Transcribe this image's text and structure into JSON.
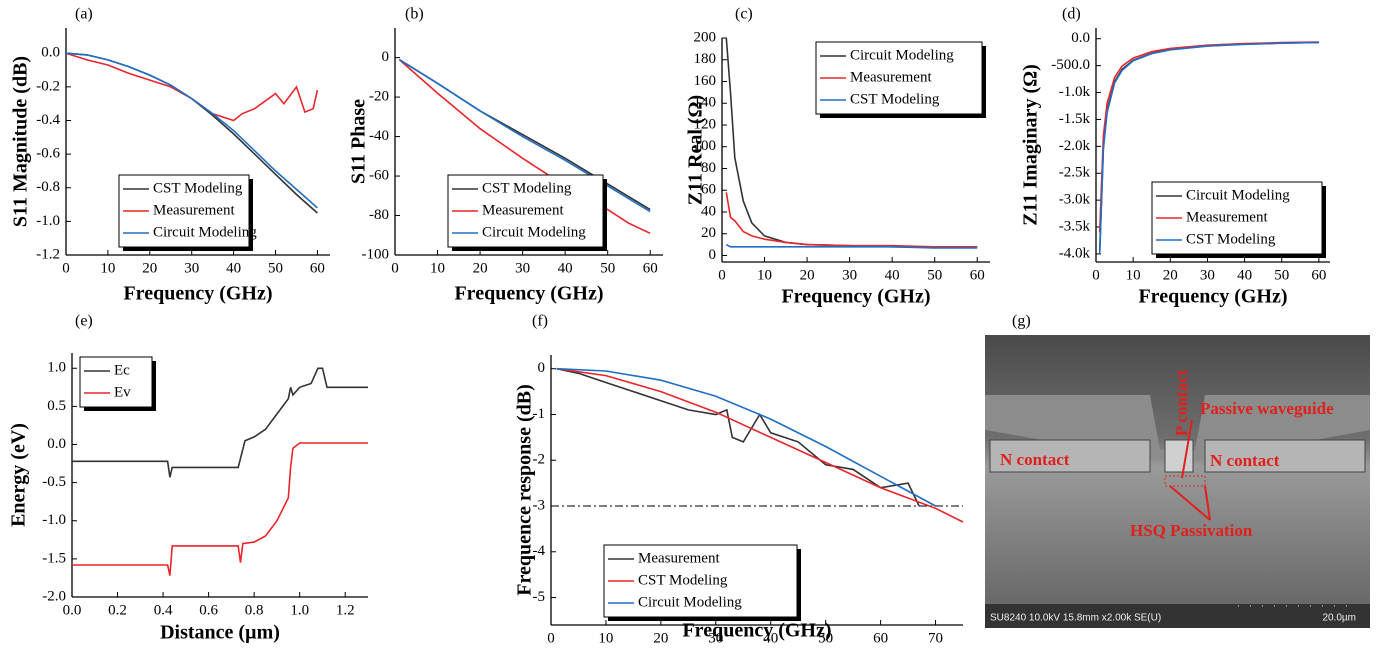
{
  "chart_data": [
    {
      "type": "line",
      "panel": "(a)",
      "xlabel": "Frequency (GHz)",
      "ylabel": "S11 Magnitude (dB)",
      "xlim": [
        0,
        63
      ],
      "ylim": [
        -1.2,
        0.15
      ],
      "xticks": [
        0,
        10,
        20,
        30,
        40,
        50,
        60
      ],
      "yticks": [
        {
          "value": 0,
          "label": "0.0"
        },
        -0.2,
        -0.4,
        -0.6,
        -0.8,
        {
          "value": -1,
          "label": "-1.0"
        },
        -1.2
      ],
      "legend": "lower left",
      "series": [
        {
          "name": "CST Modeling",
          "color": "#333333",
          "x": [
            0,
            5,
            10,
            15,
            20,
            25,
            30,
            35,
            40,
            45,
            50,
            55,
            60
          ],
          "values": [
            0,
            -0.01,
            -0.04,
            -0.08,
            -0.13,
            -0.19,
            -0.27,
            -0.37,
            -0.48,
            -0.6,
            -0.72,
            -0.84,
            -0.95
          ]
        },
        {
          "name": "Measurement",
          "color": "#e8262b",
          "x": [
            0,
            5,
            10,
            15,
            20,
            25,
            30,
            35,
            40,
            42,
            45,
            50,
            52,
            55,
            57,
            59,
            60
          ],
          "values": [
            0,
            -0.04,
            -0.07,
            -0.12,
            -0.16,
            -0.2,
            -0.27,
            -0.36,
            -0.4,
            -0.36,
            -0.33,
            -0.24,
            -0.3,
            -0.2,
            -0.35,
            -0.33,
            -0.22
          ]
        },
        {
          "name": "Circuit Modeling",
          "color": "#1f6fc5",
          "x": [
            0,
            5,
            10,
            15,
            20,
            25,
            30,
            35,
            40,
            45,
            50,
            55,
            60
          ],
          "values": [
            0,
            -0.01,
            -0.04,
            -0.08,
            -0.13,
            -0.19,
            -0.27,
            -0.36,
            -0.46,
            -0.58,
            -0.7,
            -0.81,
            -0.92
          ]
        }
      ]
    },
    {
      "type": "line",
      "panel": "(b)",
      "xlabel": "Frequency (GHz)",
      "ylabel": "S11 Phase",
      "xlim": [
        0,
        63
      ],
      "ylim": [
        -100,
        15
      ],
      "xticks": [
        0,
        10,
        20,
        30,
        40,
        50,
        60
      ],
      "yticks": [
        0,
        -20,
        -40,
        -60,
        -80,
        -100
      ],
      "legend": "lower left",
      "series": [
        {
          "name": "CST Modeling",
          "color": "#333333",
          "x": [
            1,
            10,
            20,
            30,
            40,
            50,
            60
          ],
          "values": [
            -1,
            -13,
            -27,
            -39,
            -51,
            -64,
            -77
          ]
        },
        {
          "name": "Measurement",
          "color": "#e8262b",
          "x": [
            1,
            10,
            20,
            30,
            40,
            50,
            55,
            60
          ],
          "values": [
            -1,
            -18,
            -36,
            -51,
            -65,
            -77,
            -84,
            -89
          ]
        },
        {
          "name": "Circuit Modeling",
          "color": "#1f6fc5",
          "x": [
            1,
            10,
            20,
            30,
            40,
            50,
            60
          ],
          "values": [
            -1,
            -13,
            -27,
            -40,
            -52,
            -65,
            -78
          ]
        }
      ]
    },
    {
      "type": "line",
      "panel": "(c)",
      "xlabel": "Frequency (GHz)",
      "ylabel": "Z11 Real (Ω)",
      "xlim": [
        0,
        63
      ],
      "ylim": [
        -6,
        200
      ],
      "xticks": [
        0,
        10,
        20,
        30,
        40,
        50,
        60
      ],
      "yticks": [
        0,
        20,
        40,
        60,
        80,
        100,
        120,
        140,
        160,
        180,
        200
      ],
      "legend": "upper right",
      "series": [
        {
          "name": "Circuit Modeling",
          "color": "#333333",
          "x": [
            1,
            2,
            3,
            5,
            7,
            10,
            15,
            20,
            30,
            40,
            50,
            60
          ],
          "values": [
            200,
            150,
            90,
            50,
            30,
            18,
            12,
            10,
            9,
            8,
            8,
            8
          ]
        },
        {
          "name": "Measurement",
          "color": "#e8262b",
          "x": [
            1,
            2,
            3,
            5,
            7,
            10,
            15,
            20,
            30,
            40,
            50,
            60
          ],
          "values": [
            58,
            35,
            32,
            22,
            18,
            15,
            12,
            10,
            9,
            9,
            8,
            8
          ]
        },
        {
          "name": "CST Modeling",
          "color": "#1f6fc5",
          "x": [
            1,
            2,
            3,
            5,
            7,
            10,
            15,
            20,
            30,
            40,
            50,
            60
          ],
          "values": [
            10,
            8,
            8,
            8,
            8,
            8,
            8,
            8,
            8,
            8,
            7,
            7
          ]
        }
      ]
    },
    {
      "type": "line",
      "panel": "(d)",
      "xlabel": "Frequency (GHz)",
      "ylabel": "Z11 Imaginary (Ω)",
      "xlim": [
        0,
        63
      ],
      "ylim": [
        -4150,
        200
      ],
      "xticks": [
        0,
        10,
        20,
        30,
        40,
        50,
        60
      ],
      "yticks": [
        {
          "value": 0,
          "label": "0.0"
        },
        {
          "value": -500,
          "label": "-500.0"
        },
        {
          "value": -1000,
          "label": "-1.0k"
        },
        {
          "value": -1500,
          "label": "-1.5k"
        },
        {
          "value": -2000,
          "label": "-2.0k"
        },
        {
          "value": -2500,
          "label": "-2.5k"
        },
        {
          "value": -3000,
          "label": "-3.0k"
        },
        {
          "value": -3500,
          "label": "-3.5k"
        },
        {
          "value": -4000,
          "label": "-4.0k"
        }
      ],
      "legend": "lower right",
      "series": [
        {
          "name": "Circuit Modeling",
          "color": "#333333",
          "x": [
            1,
            2,
            3,
            5,
            7,
            10,
            15,
            20,
            30,
            40,
            50,
            60
          ],
          "values": [
            -3950,
            -2000,
            -1330,
            -800,
            -570,
            -400,
            -270,
            -200,
            -135,
            -100,
            -80,
            -67
          ]
        },
        {
          "name": "Measurement",
          "color": "#e8262b",
          "x": [
            1,
            2,
            3,
            5,
            7,
            10,
            15,
            20,
            30,
            40,
            50,
            60
          ],
          "values": [
            -3600,
            -1800,
            -1200,
            -720,
            -510,
            -360,
            -240,
            -180,
            -120,
            -90,
            -72,
            -60
          ]
        },
        {
          "name": "CST Modeling",
          "color": "#1f6fc5",
          "x": [
            1,
            2,
            3,
            5,
            7,
            10,
            15,
            20,
            30,
            40,
            50,
            60
          ],
          "values": [
            -4000,
            -2050,
            -1370,
            -820,
            -590,
            -410,
            -275,
            -205,
            -137,
            -103,
            -82,
            -68
          ]
        }
      ]
    },
    {
      "type": "line",
      "panel": "(e)",
      "xlabel": "Distance (µm)",
      "ylabel": "Energy (eV)",
      "xlim": [
        0,
        1.3
      ],
      "ylim": [
        -2,
        1.2
      ],
      "xticks": [
        {
          "value": 0,
          "label": "0.0"
        },
        0.2,
        0.4,
        0.6,
        0.8,
        {
          "value": 1,
          "label": "1.0"
        },
        1.2
      ],
      "yticks": [
        {
          "value": 1,
          "label": "1.0"
        },
        0.5,
        {
          "value": 0,
          "label": "0.0"
        },
        -0.5,
        {
          "value": -1,
          "label": "-1.0"
        },
        -1.5,
        {
          "value": -2,
          "label": "-2.0"
        }
      ],
      "legend": "upper left",
      "series": [
        {
          "name": "Ec",
          "color": "#333333",
          "x": [
            0,
            0.42,
            0.43,
            0.44,
            0.73,
            0.76,
            0.8,
            0.85,
            0.9,
            0.95,
            0.96,
            0.97,
            1.0,
            1.05,
            1.08,
            1.1,
            1.12,
            1.3
          ],
          "values": [
            -0.22,
            -0.22,
            -0.43,
            -0.3,
            -0.3,
            0.05,
            0.1,
            0.2,
            0.4,
            0.6,
            0.75,
            0.65,
            0.75,
            0.8,
            1.0,
            1.0,
            0.75,
            0.75
          ]
        },
        {
          "name": "Ev",
          "color": "#e8262b",
          "x": [
            0,
            0.42,
            0.43,
            0.44,
            0.73,
            0.74,
            0.75,
            0.8,
            0.85,
            0.9,
            0.95,
            0.96,
            0.97,
            1.0,
            1.3
          ],
          "values": [
            -1.58,
            -1.58,
            -1.72,
            -1.33,
            -1.33,
            -1.55,
            -1.3,
            -1.28,
            -1.2,
            -1.0,
            -0.7,
            -0.3,
            -0.05,
            0.02,
            0.02
          ]
        }
      ]
    },
    {
      "type": "line",
      "panel": "(f)",
      "xlabel": "Frequency (GHz)",
      "ylabel": "Frequence response (dB)",
      "xlim": [
        0,
        75
      ],
      "ylim": [
        -5.6,
        0.3
      ],
      "xticks": [
        0,
        10,
        20,
        30,
        40,
        50,
        60,
        70
      ],
      "yticks": [
        0,
        -1,
        -2,
        -3,
        -4,
        -5
      ],
      "legend": "lower left",
      "hline": -3,
      "series": [
        {
          "name": "Measurement",
          "color": "#333333",
          "x": [
            1,
            5,
            10,
            15,
            20,
            25,
            30,
            32,
            33,
            35,
            38,
            40,
            45,
            50,
            55,
            60,
            65,
            67
          ],
          "values": [
            0,
            -0.1,
            -0.3,
            -0.5,
            -0.7,
            -0.9,
            -1.0,
            -0.9,
            -1.5,
            -1.6,
            -1.0,
            -1.4,
            -1.6,
            -2.1,
            -2.2,
            -2.6,
            -2.5,
            -3.0
          ]
        },
        {
          "name": "CST Modeling",
          "color": "#e8262b",
          "x": [
            1,
            10,
            20,
            30,
            40,
            50,
            60,
            70,
            75
          ],
          "values": [
            0,
            -0.15,
            -0.5,
            -0.95,
            -1.5,
            -2.05,
            -2.6,
            -3.05,
            -3.35
          ]
        },
        {
          "name": "Circuit Modeling",
          "color": "#1f6fc5",
          "x": [
            1,
            10,
            20,
            30,
            40,
            50,
            60,
            70
          ],
          "values": [
            0,
            -0.05,
            -0.25,
            -0.6,
            -1.1,
            -1.7,
            -2.35,
            -3.0
          ]
        }
      ]
    }
  ],
  "image": {
    "panel": "(g)",
    "annotations": [
      "Passive waveguide",
      "P contact",
      "N contact",
      "N contact",
      "HSQ Passivation"
    ],
    "info_bar": "SU8240 10.0kV 15.8mm x2.00k SE(U)",
    "scale_bar": "20.0µm"
  }
}
